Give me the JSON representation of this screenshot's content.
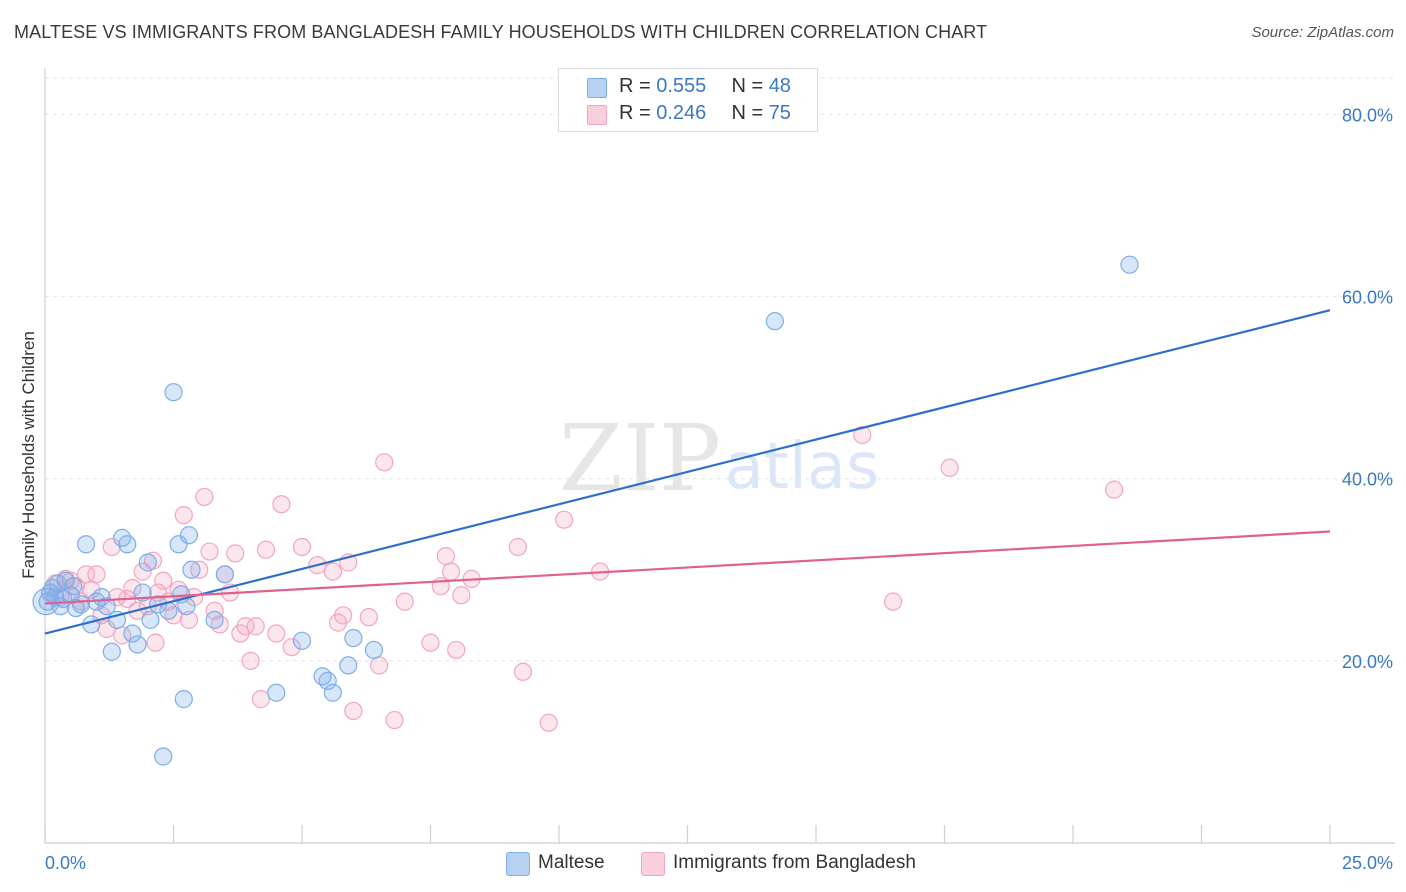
{
  "title": "MALTESE VS IMMIGRANTS FROM BANGLADESH FAMILY HOUSEHOLDS WITH CHILDREN CORRELATION CHART",
  "source": "Source: ZipAtlas.com",
  "watermark": {
    "zip": "ZIP",
    "atlas": "atlas"
  },
  "legend": {
    "rows": [
      {
        "r_label": "R = ",
        "r_value": "0.555",
        "n_label": "N = ",
        "n_value": "48"
      },
      {
        "r_label": "R = ",
        "r_value": "0.246",
        "n_label": "N = ",
        "n_value": "75"
      }
    ]
  },
  "chart_data": {
    "type": "scatter",
    "title": "MALTESE VS IMMIGRANTS FROM BANGLADESH FAMILY HOUSEHOLDS WITH CHILDREN CORRELATION CHART",
    "ylabel": "Family Households with Children",
    "xlabel": "",
    "xlim": [
      0,
      25
    ],
    "ylim": [
      0,
      84
    ],
    "x_tick_labels": [
      "0.0%",
      "25.0%"
    ],
    "y_ticks": [
      20,
      40,
      60,
      80
    ],
    "y_tick_labels": [
      "20.0%",
      "40.0%",
      "60.0%",
      "80.0%"
    ],
    "grid": true,
    "legend_position": "top-center",
    "series": [
      {
        "name": "Maltese",
        "color": "#7eaee8",
        "line_color": "#2f6fc9",
        "trend": {
          "x": [
            0,
            25
          ],
          "y": [
            23.0,
            58.5
          ]
        },
        "points": [
          [
            0.05,
            26.5
          ],
          [
            0.1,
            27.5
          ],
          [
            0.2,
            27.0
          ],
          [
            0.25,
            28.5
          ],
          [
            0.3,
            26.0
          ],
          [
            0.4,
            28.8
          ],
          [
            0.5,
            27.2
          ],
          [
            0.6,
            25.8
          ],
          [
            0.7,
            26.2
          ],
          [
            0.8,
            32.8
          ],
          [
            0.9,
            24.0
          ],
          [
            1.0,
            26.5
          ],
          [
            1.1,
            27.0
          ],
          [
            1.2,
            26.0
          ],
          [
            1.3,
            21.0
          ],
          [
            1.4,
            24.5
          ],
          [
            1.5,
            33.5
          ],
          [
            1.6,
            32.8
          ],
          [
            1.7,
            23.0
          ],
          [
            1.8,
            21.8
          ],
          [
            1.9,
            27.5
          ],
          [
            2.0,
            30.8
          ],
          [
            2.05,
            24.5
          ],
          [
            2.2,
            26.2
          ],
          [
            2.4,
            25.5
          ],
          [
            2.5,
            49.5
          ],
          [
            2.6,
            32.8
          ],
          [
            2.65,
            27.3
          ],
          [
            2.7,
            15.8
          ],
          [
            2.75,
            26.0
          ],
          [
            2.8,
            33.8
          ],
          [
            2.85,
            30.0
          ],
          [
            2.3,
            9.5
          ],
          [
            3.3,
            24.5
          ],
          [
            3.5,
            29.5
          ],
          [
            4.5,
            16.5
          ],
          [
            5.0,
            22.2
          ],
          [
            5.4,
            18.3
          ],
          [
            5.5,
            17.8
          ],
          [
            5.6,
            16.5
          ],
          [
            5.9,
            19.5
          ],
          [
            6.0,
            22.5
          ],
          [
            6.4,
            21.2
          ],
          [
            14.2,
            57.3
          ],
          [
            21.1,
            63.5
          ],
          [
            0.15,
            28.0
          ],
          [
            0.35,
            26.8
          ],
          [
            0.55,
            28.2
          ]
        ]
      },
      {
        "name": "Immigrants from Bangladesh",
        "color": "#f3a5bf",
        "line_color": "#e0608f",
        "trend": {
          "x": [
            0,
            25
          ],
          "y": [
            26.3,
            34.2
          ]
        },
        "points": [
          [
            0.1,
            27.5
          ],
          [
            0.2,
            28.5
          ],
          [
            0.3,
            27.0
          ],
          [
            0.4,
            29.0
          ],
          [
            0.5,
            28.8
          ],
          [
            0.6,
            28.2
          ],
          [
            0.7,
            26.5
          ],
          [
            0.8,
            29.5
          ],
          [
            0.9,
            27.8
          ],
          [
            1.0,
            29.5
          ],
          [
            1.1,
            25.0
          ],
          [
            1.2,
            23.5
          ],
          [
            1.3,
            32.5
          ],
          [
            1.4,
            27.0
          ],
          [
            1.5,
            22.8
          ],
          [
            1.6,
            26.8
          ],
          [
            1.7,
            28.0
          ],
          [
            1.8,
            25.5
          ],
          [
            1.9,
            29.8
          ],
          [
            2.0,
            26.0
          ],
          [
            2.1,
            31.0
          ],
          [
            2.15,
            22.0
          ],
          [
            2.2,
            27.5
          ],
          [
            2.3,
            28.8
          ],
          [
            2.4,
            26.5
          ],
          [
            2.5,
            25.0
          ],
          [
            2.6,
            27.8
          ],
          [
            2.7,
            36.0
          ],
          [
            2.8,
            24.5
          ],
          [
            2.9,
            27.0
          ],
          [
            3.0,
            30.0
          ],
          [
            3.1,
            38.0
          ],
          [
            3.2,
            32.0
          ],
          [
            3.3,
            25.5
          ],
          [
            3.4,
            24.0
          ],
          [
            3.5,
            29.5
          ],
          [
            3.6,
            27.5
          ],
          [
            3.7,
            31.8
          ],
          [
            3.8,
            23.0
          ],
          [
            3.9,
            23.8
          ],
          [
            4.0,
            20.0
          ],
          [
            4.1,
            23.8
          ],
          [
            4.2,
            15.8
          ],
          [
            4.3,
            32.2
          ],
          [
            4.5,
            23.0
          ],
          [
            4.6,
            37.2
          ],
          [
            4.8,
            21.5
          ],
          [
            5.0,
            32.5
          ],
          [
            5.3,
            30.5
          ],
          [
            5.6,
            29.8
          ],
          [
            5.7,
            24.2
          ],
          [
            5.8,
            25.0
          ],
          [
            5.9,
            30.8
          ],
          [
            6.0,
            14.5
          ],
          [
            6.3,
            24.8
          ],
          [
            6.5,
            19.5
          ],
          [
            6.6,
            41.8
          ],
          [
            6.8,
            13.5
          ],
          [
            7.0,
            26.5
          ],
          [
            7.5,
            22.0
          ],
          [
            7.7,
            28.2
          ],
          [
            7.8,
            31.5
          ],
          [
            7.9,
            29.8
          ],
          [
            8.0,
            21.2
          ],
          [
            8.1,
            27.2
          ],
          [
            8.3,
            29.0
          ],
          [
            9.2,
            32.5
          ],
          [
            9.3,
            18.8
          ],
          [
            9.8,
            13.2
          ],
          [
            10.1,
            35.5
          ],
          [
            10.8,
            29.8
          ],
          [
            15.9,
            44.8
          ],
          [
            16.5,
            26.5
          ],
          [
            17.6,
            41.2
          ],
          [
            20.8,
            38.8
          ]
        ]
      }
    ]
  },
  "bottom_legend": [
    {
      "label": "Maltese",
      "color": "#b7d1f3",
      "border": "#7eaee8"
    },
    {
      "label": "Immigrants from Bangladesh",
      "color": "#f9cfdc",
      "border": "#f3a5bf"
    }
  ]
}
